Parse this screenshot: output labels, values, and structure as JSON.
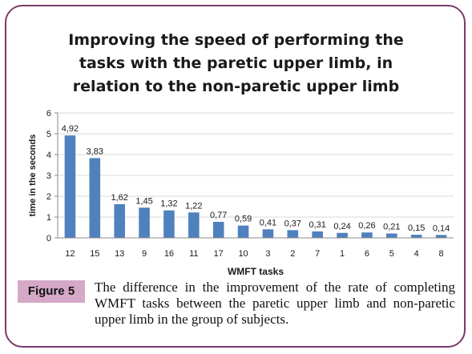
{
  "figure": {
    "label": "Figure 5",
    "caption": "The difference in the improvement of the rate of completing WMFT tasks between the paretic upper limb and non-paretic upper limb in the group of subjects."
  },
  "colors": {
    "frame": "#7a3a6a",
    "bar": "#4f81bd",
    "label_bg": "#d4a8c6",
    "grid": "#d9d9d9"
  },
  "chart_data": {
    "type": "bar",
    "title_lines": [
      "Improving the speed of performing the",
      "tasks with the paretic upper limb, in",
      "relation to the non-paretic upper limb"
    ],
    "xlabel": "WMFT tasks",
    "ylabel": "time in the seconds",
    "ylim": [
      0,
      6
    ],
    "yticks": [
      "0",
      "1",
      "2",
      "3",
      "4",
      "5",
      "6"
    ],
    "grid": true,
    "categories": [
      "12",
      "15",
      "13",
      "9",
      "16",
      "11",
      "17",
      "10",
      "3",
      "2",
      "7",
      "1",
      "6",
      "5",
      "4",
      "8"
    ],
    "values": [
      4.92,
      3.83,
      1.62,
      1.45,
      1.32,
      1.22,
      0.77,
      0.59,
      0.41,
      0.37,
      0.31,
      0.24,
      0.26,
      0.21,
      0.15,
      0.14
    ],
    "value_labels": [
      "4,92",
      "3,83",
      "1,62",
      "1,45",
      "1,32",
      "1,22",
      "0,77",
      "0,59",
      "0,41",
      "0,37",
      "0,31",
      "0,24",
      "0,26",
      "0,21",
      "0,15",
      "0,14"
    ]
  }
}
